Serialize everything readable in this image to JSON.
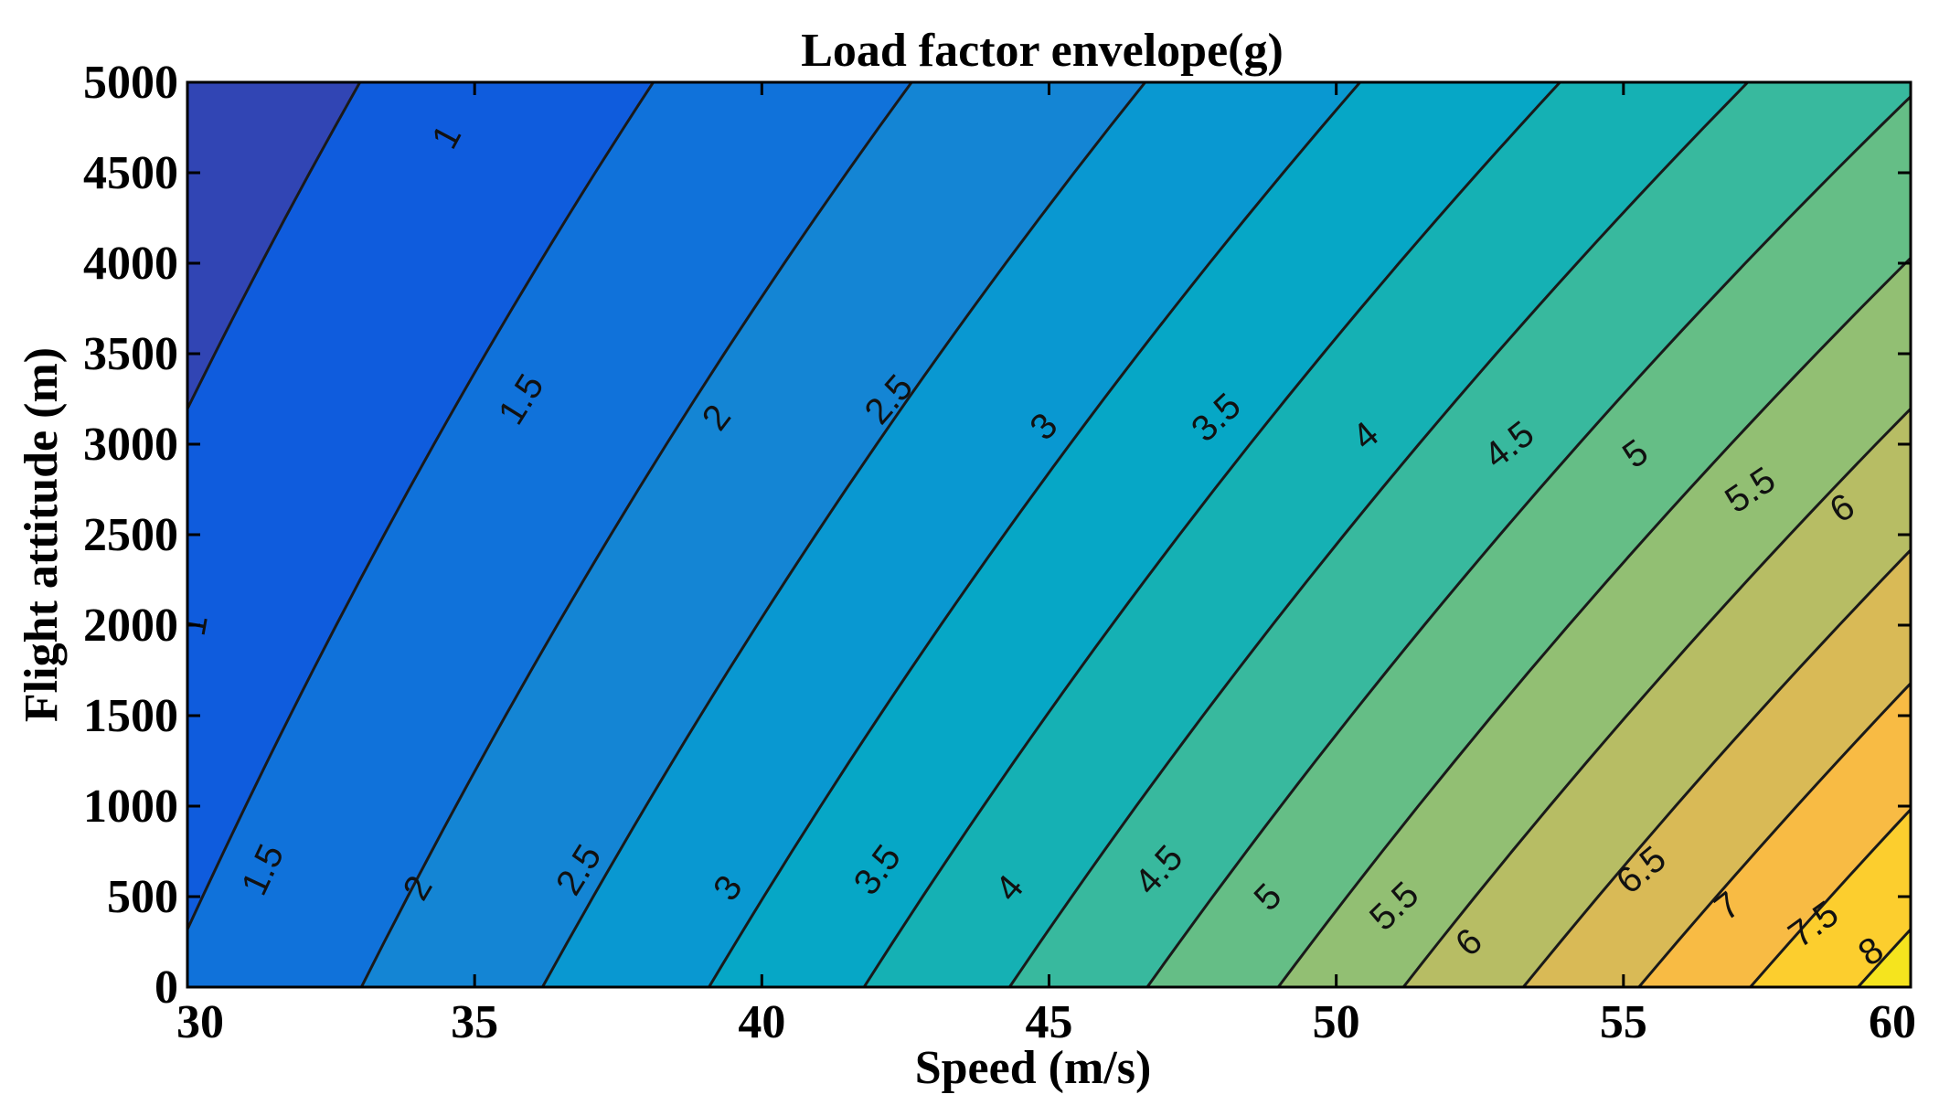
{
  "chart_data": {
    "type": "contour",
    "title": "Load factor envelope(g)",
    "xlabel": "Speed (m/s)",
    "ylabel": "Flight attitude (m)",
    "xlim": [
      30,
      60
    ],
    "ylim": [
      0,
      5000
    ],
    "xticks": [
      "30",
      "35",
      "40",
      "45",
      "50",
      "55",
      "60"
    ],
    "yticks": [
      "0",
      "500",
      "1000",
      "1500",
      "2000",
      "2500",
      "3000",
      "3500",
      "4000",
      "4500",
      "5000"
    ],
    "colormap": "parula",
    "levels": [
      1,
      1.5,
      2,
      2.5,
      3,
      3.5,
      4,
      4.5,
      5,
      5.5,
      6,
      6.5,
      7,
      7.5,
      8
    ],
    "level_colors": [
      "#352a87",
      "#3145b4",
      "#0f5cdd",
      "#1072da",
      "#1485d4",
      "#0998d1",
      "#06a7c6",
      "#15b1b4",
      "#38b99e",
      "#65be86",
      "#92bf73",
      "#b7bd64",
      "#d9ba56",
      "#f8bb44",
      "#fcce2e",
      "#f5e41e"
    ],
    "contour_labels": [
      {
        "text": "1",
        "x": 30.1,
        "y": 2000,
        "rot": -80
      },
      {
        "text": "1",
        "x": 34.5,
        "y": 4700,
        "rot": -62
      },
      {
        "text": "1.5",
        "x": 31.3,
        "y": 650,
        "rot": -65
      },
      {
        "text": "1.5",
        "x": 35.8,
        "y": 3250,
        "rot": -58
      },
      {
        "text": "2",
        "x": 34.0,
        "y": 550,
        "rot": -60
      },
      {
        "text": "2",
        "x": 39.2,
        "y": 3150,
        "rot": -53
      },
      {
        "text": "2.5",
        "x": 36.8,
        "y": 650,
        "rot": -58
      },
      {
        "text": "2.5",
        "x": 42.2,
        "y": 3250,
        "rot": -49
      },
      {
        "text": "3",
        "x": 39.4,
        "y": 550,
        "rot": -55
      },
      {
        "text": "3",
        "x": 44.9,
        "y": 3100,
        "rot": -46
      },
      {
        "text": "3.5",
        "x": 42.0,
        "y": 650,
        "rot": -53
      },
      {
        "text": "3.5",
        "x": 47.9,
        "y": 3150,
        "rot": -43
      },
      {
        "text": "4",
        "x": 44.3,
        "y": 550,
        "rot": -50
      },
      {
        "text": "4",
        "x": 50.5,
        "y": 3050,
        "rot": -40
      },
      {
        "text": "4.5",
        "x": 46.9,
        "y": 650,
        "rot": -48
      },
      {
        "text": "4.5",
        "x": 53.0,
        "y": 3000,
        "rot": -38
      },
      {
        "text": "5",
        "x": 48.8,
        "y": 500,
        "rot": -46
      },
      {
        "text": "5",
        "x": 55.2,
        "y": 2950,
        "rot": -36
      },
      {
        "text": "5.5",
        "x": 51.0,
        "y": 450,
        "rot": -44
      },
      {
        "text": "5.5",
        "x": 57.2,
        "y": 2750,
        "rot": -34
      },
      {
        "text": "6",
        "x": 52.3,
        "y": 250,
        "rot": -42
      },
      {
        "text": "6",
        "x": 58.8,
        "y": 2650,
        "rot": -32
      },
      {
        "text": "6.5",
        "x": 55.3,
        "y": 650,
        "rot": -40
      },
      {
        "text": "7",
        "x": 56.8,
        "y": 450,
        "rot": -38
      },
      {
        "text": "7.5",
        "x": 58.3,
        "y": 350,
        "rot": -36
      },
      {
        "text": "8",
        "x": 59.3,
        "y": 200,
        "rot": -34
      }
    ]
  }
}
